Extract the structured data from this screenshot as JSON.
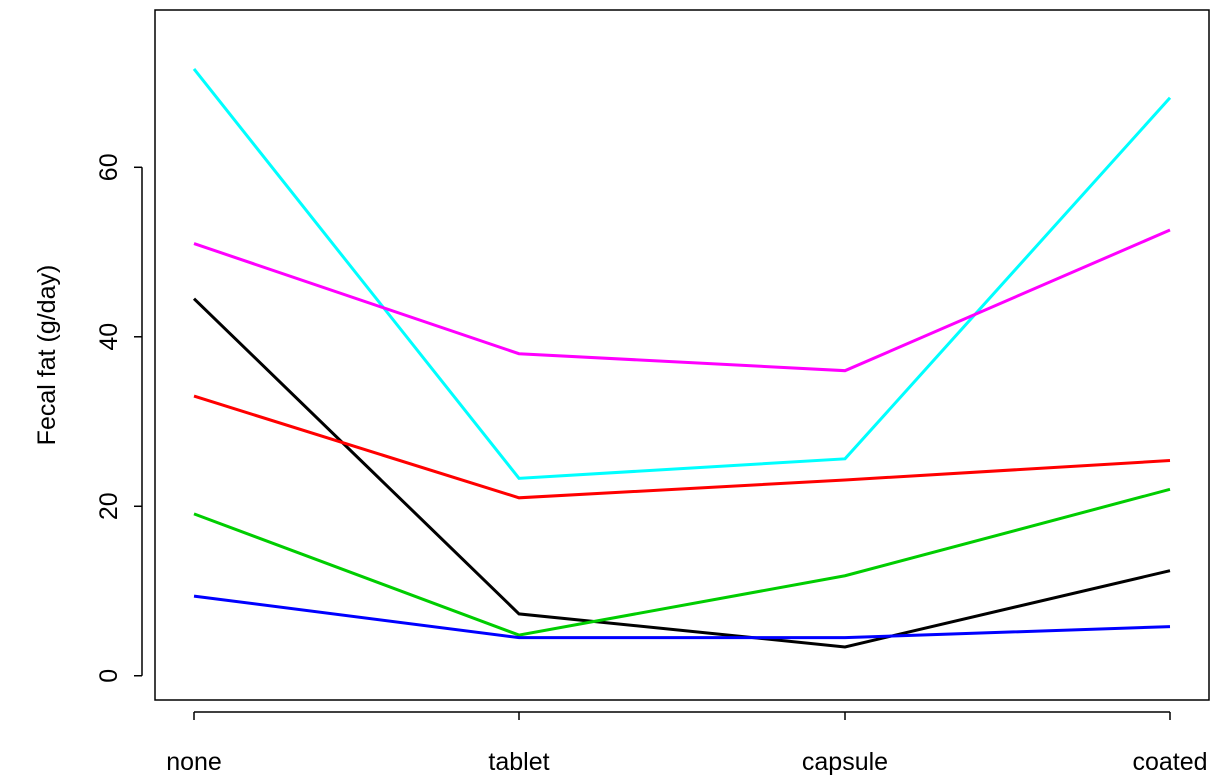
{
  "chart_data": {
    "type": "line",
    "title": "",
    "xlabel": "",
    "ylabel": "Fecal fat (g/day)",
    "categories": [
      "none",
      "tablet",
      "capsule",
      "coated"
    ],
    "ylim": [
      -2.86,
      78.56
    ],
    "yticks": [
      0,
      20,
      40,
      60
    ],
    "grid": false,
    "legend": "none",
    "series": [
      {
        "color": "#000000",
        "values": [
          44.5,
          7.3,
          3.4,
          12.4
        ]
      },
      {
        "color": "#ff0000",
        "values": [
          33.0,
          21.0,
          23.1,
          25.4
        ]
      },
      {
        "color": "#00cd00",
        "values": [
          19.1,
          4.8,
          11.8,
          22.0
        ]
      },
      {
        "color": "#0000ff",
        "values": [
          9.4,
          4.5,
          4.5,
          5.8
        ]
      },
      {
        "color": "#00ffff",
        "values": [
          71.6,
          23.3,
          25.6,
          68.2
        ]
      },
      {
        "color": "#ff00ff",
        "values": [
          51.0,
          38.0,
          36.0,
          52.6
        ]
      }
    ]
  }
}
